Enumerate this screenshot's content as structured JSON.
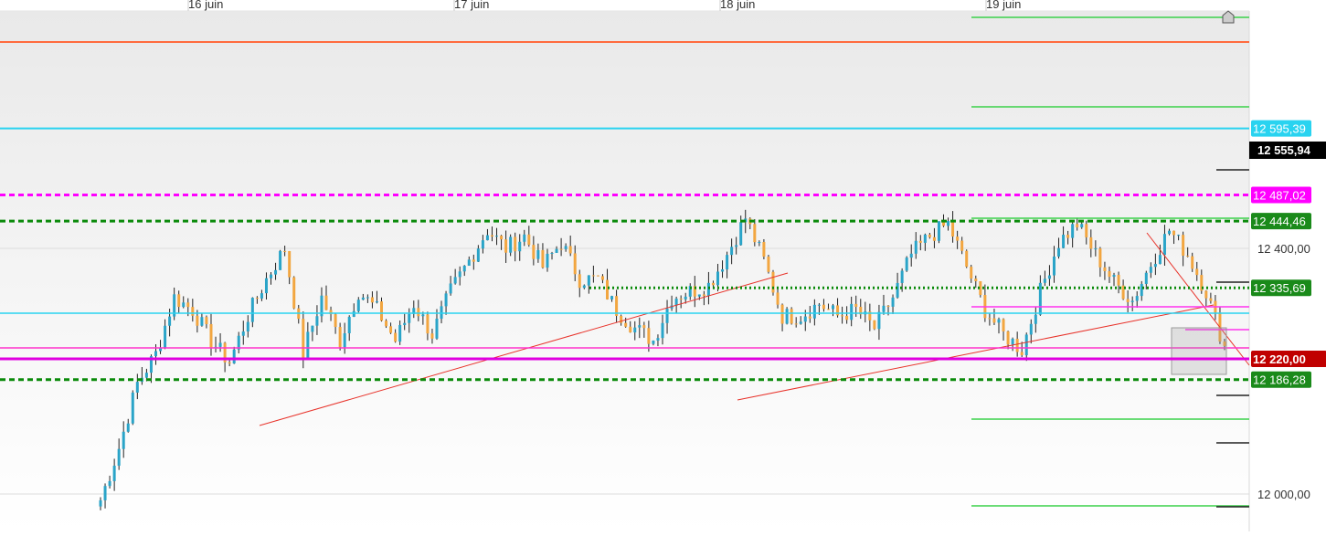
{
  "chart_data": {
    "type": "candlestick",
    "title": "",
    "x_ticks": [
      "16 juin",
      "17 juin",
      "18 juin",
      "19 juin"
    ],
    "y_ticks": [
      {
        "value": 12400,
        "label": "12 400,00"
      },
      {
        "value": 12000,
        "label": "12 000,00"
      }
    ],
    "ylim": [
      11940,
      12805
    ],
    "last_price": {
      "value": 12555.94,
      "label": "12 555,94"
    },
    "horizontal_levels": [
      {
        "value": 12736.0,
        "label": "",
        "color": "#ff6a3d",
        "style": "solid"
      },
      {
        "value": 12595.39,
        "label": "12 595,39",
        "color": "#29d3f0",
        "style": "solid"
      },
      {
        "value": 12487.02,
        "label": "12 487,02",
        "color": "#ff00ff",
        "style": "dashed"
      },
      {
        "value": 12444.46,
        "label": "12 444,46",
        "color": "#0a8a0a",
        "style": "dashed"
      },
      {
        "value": 12335.69,
        "label": "12 335,69",
        "color": "#0a8a0a",
        "style": "dotted"
      },
      {
        "value": 12220.0,
        "label": "12 220,00",
        "color": "#c00000",
        "style": "solid"
      },
      {
        "value": 12186.28,
        "label": "12 186,28",
        "color": "#0a8a0a",
        "style": "dashed"
      }
    ],
    "series": [
      {
        "name": "",
        "values": [
          11990,
          12075,
          12180,
          12228,
          12320,
          12300,
          12250,
          12215,
          12290,
          12350,
          12400,
          12230,
          12320,
          12250,
          12330,
          12300,
          12250,
          12310,
          12260,
          12330,
          12380,
          12430,
          12400,
          12420,
          12370,
          12410,
          12350,
          12350,
          12300,
          12270,
          12250,
          12320,
          12330,
          12340,
          12390,
          12450,
          12380,
          12290,
          12290,
          12310,
          12290,
          12300,
          12270,
          12320,
          12390,
          12420,
          12440,
          12370,
          12300,
          12260,
          12235,
          12330,
          12410,
          12440,
          12390,
          12345,
          12315,
          12375,
          12430,
          12390,
          12330,
          12240
        ]
      }
    ]
  }
}
